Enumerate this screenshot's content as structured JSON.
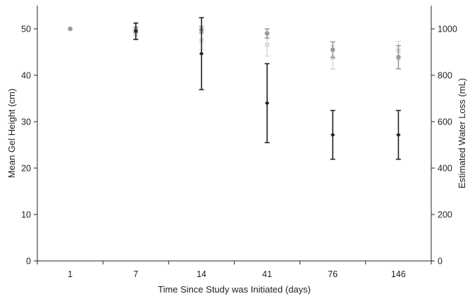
{
  "chart_data": {
    "type": "scatter",
    "title": "",
    "xlabel": "Time Since Study was Initiated (days)",
    "ylabel_left": "Mean Gel Height (cm)",
    "ylabel_right": "Estimated Water Loss (mL)",
    "categories": [
      "1",
      "7",
      "14",
      "41",
      "76",
      "146"
    ],
    "ylim_left": [
      0,
      55
    ],
    "yticks_left": [
      0,
      10,
      20,
      30,
      40,
      50
    ],
    "ylim_right": [
      0,
      1100
    ],
    "yticks_right": [
      0,
      200,
      400,
      600,
      800,
      1000
    ],
    "grid": false,
    "legend": "none",
    "series": [
      {
        "axis": "left",
        "color": "#dcdcdc",
        "marker": "square",
        "values": [
          null,
          48.8,
          47.5,
          46.6,
          43.8,
          45.3
        ],
        "err": [
          null,
          1.2,
          2.0,
          2.5,
          2.5,
          2.0
        ]
      },
      {
        "axis": "left",
        "color": "#999999",
        "marker": "circle",
        "values": [
          50,
          49.8,
          49.8,
          49.0,
          45.5,
          43.9
        ],
        "err": [
          0,
          0.6,
          0.7,
          1.0,
          1.7,
          2.5
        ]
      },
      {
        "axis": "right",
        "color": "#222222",
        "marker": "diamond",
        "values": [
          null,
          990,
          893,
          680,
          543,
          543
        ],
        "err": [
          null,
          35,
          155,
          170,
          105,
          105
        ]
      }
    ]
  }
}
